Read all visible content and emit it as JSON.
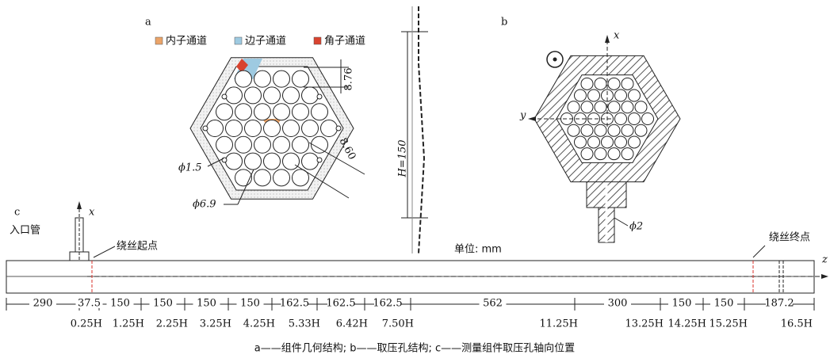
{
  "panel_a": {
    "label": "a",
    "legend": [
      {
        "name": "内子通道",
        "color": "#eba469"
      },
      {
        "name": "边子通道",
        "color": "#9ecae1"
      },
      {
        "name": "角子通道",
        "color": "#d9432f"
      }
    ],
    "gap": "8.76",
    "pitch": "8.60",
    "wire": "ϕ1.5",
    "rod": "ϕ6.9"
  },
  "height_label": "H=150",
  "panel_b": {
    "label": "b",
    "x_axis": "x",
    "y_axis": "y",
    "hole": "ϕ2"
  },
  "panel_c": {
    "label": "c",
    "inlet": "入口管",
    "x_axis": "x",
    "start": "绕丝起点",
    "end": "绕丝终点",
    "unit": "单位: mm",
    "z_axis": "z",
    "segments": [
      290,
      37.5,
      150,
      150,
      150,
      150,
      162.5,
      162.5,
      162.5,
      562,
      300,
      150,
      150,
      187.2
    ],
    "positions": [
      "0.25H",
      "1.25H",
      "2.25H",
      "3.25H",
      "4.25H",
      "5.33H",
      "6.42H",
      "7.50H",
      "11.25H",
      "13.25H",
      "14.25H",
      "15.25H",
      "16.5H"
    ]
  },
  "caption": "a——组件几何结构; b——取压孔结构; c——测量组件取压孔轴向位置"
}
